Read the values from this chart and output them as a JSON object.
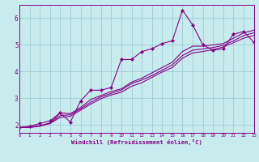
{
  "bg_color": "#c8ecee",
  "grid_color": "#9ecdd4",
  "line_color": "#880088",
  "xlabel": "Windchill (Refroidissement éolien,°C)",
  "xlim": [
    0,
    23
  ],
  "ylim": [
    1.7,
    6.5
  ],
  "yticks": [
    2,
    3,
    4,
    5,
    6
  ],
  "xticks": [
    0,
    1,
    2,
    3,
    4,
    5,
    6,
    7,
    8,
    9,
    10,
    11,
    12,
    13,
    14,
    15,
    16,
    17,
    18,
    19,
    20,
    21,
    22,
    23
  ],
  "series": [
    {
      "x": [
        0,
        1,
        2,
        3,
        4,
        5,
        6,
        7,
        8,
        9,
        10,
        11,
        12,
        13,
        14,
        15,
        16,
        17,
        18,
        19,
        20,
        21,
        22,
        23
      ],
      "y": [
        1.9,
        1.95,
        2.05,
        2.15,
        2.45,
        2.1,
        2.9,
        3.3,
        3.3,
        3.4,
        4.45,
        4.45,
        4.75,
        4.85,
        5.05,
        5.15,
        6.3,
        5.75,
        5.0,
        4.8,
        4.85,
        5.4,
        5.5,
        5.1
      ],
      "marker": true
    },
    {
      "x": [
        0,
        1,
        2,
        3,
        4,
        5,
        6,
        7,
        8,
        9,
        10,
        11,
        12,
        13,
        14,
        15,
        16,
        17,
        18,
        19,
        20,
        21,
        22,
        23
      ],
      "y": [
        1.9,
        1.92,
        1.97,
        2.07,
        2.45,
        2.42,
        2.65,
        2.95,
        3.1,
        3.25,
        3.35,
        3.6,
        3.75,
        3.95,
        4.15,
        4.35,
        4.75,
        4.95,
        4.95,
        5.0,
        5.05,
        5.25,
        5.45,
        5.55
      ],
      "marker": false
    },
    {
      "x": [
        0,
        1,
        2,
        3,
        4,
        5,
        6,
        7,
        8,
        9,
        10,
        11,
        12,
        13,
        14,
        15,
        16,
        17,
        18,
        19,
        20,
        21,
        22,
        23
      ],
      "y": [
        1.9,
        1.91,
        1.96,
        2.06,
        2.35,
        2.38,
        2.6,
        2.85,
        3.05,
        3.18,
        3.3,
        3.55,
        3.68,
        3.85,
        4.05,
        4.25,
        4.6,
        4.8,
        4.85,
        4.9,
        4.98,
        5.15,
        5.35,
        5.45
      ],
      "marker": false
    },
    {
      "x": [
        0,
        1,
        2,
        3,
        4,
        5,
        6,
        7,
        8,
        9,
        10,
        11,
        12,
        13,
        14,
        15,
        16,
        17,
        18,
        19,
        20,
        21,
        22,
        23
      ],
      "y": [
        1.9,
        1.9,
        1.95,
        2.05,
        2.28,
        2.32,
        2.55,
        2.78,
        2.98,
        3.12,
        3.22,
        3.45,
        3.58,
        3.78,
        3.98,
        4.15,
        4.5,
        4.7,
        4.75,
        4.82,
        4.92,
        5.08,
        5.25,
        5.35
      ],
      "marker": false
    }
  ]
}
